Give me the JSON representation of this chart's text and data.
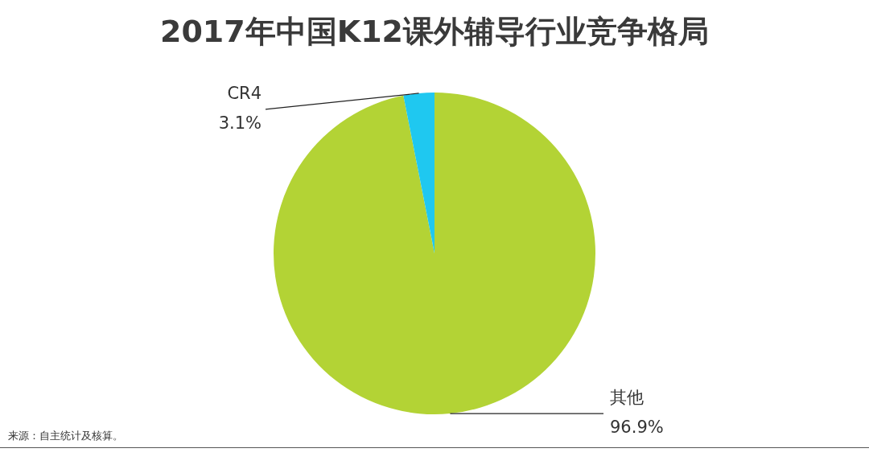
{
  "chart_data": {
    "type": "pie",
    "title": "2017年中国K12课外辅导行业竞争格局",
    "categories": [
      "其他",
      "CR4"
    ],
    "values": [
      96.9,
      3.1
    ],
    "value_labels": [
      "96.9%",
      "3.1%"
    ],
    "colors": [
      "#b3d335",
      "#1fc8f0"
    ],
    "annotations": [
      "来源：自主统计及核算。"
    ]
  }
}
